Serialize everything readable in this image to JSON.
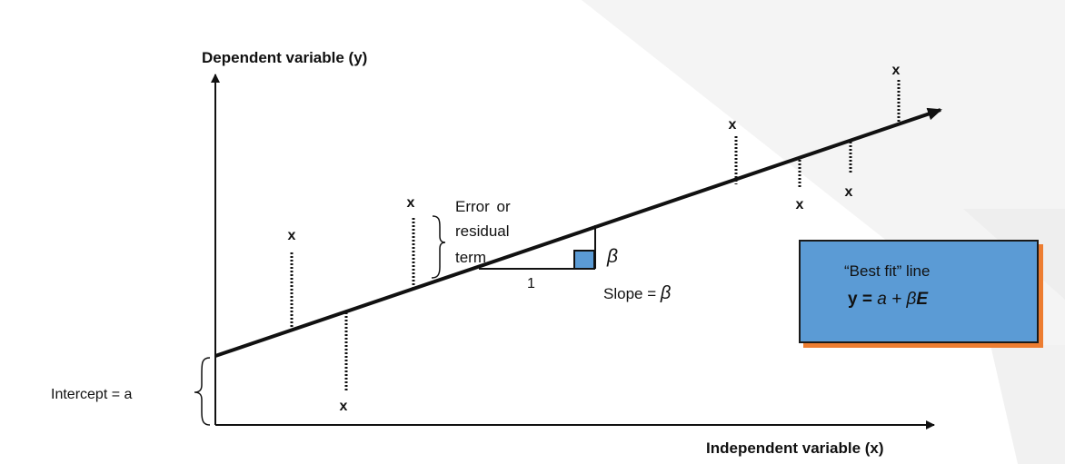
{
  "axes": {
    "y_label": "Dependent variable (y)",
    "x_label": "Independent variable (x)"
  },
  "marks": {
    "symbol": "x"
  },
  "annotations": {
    "intercept": "Intercept = a",
    "error_line1": "Error or",
    "error_line2": "residual",
    "error_line3": "term",
    "run": "1",
    "rise": "β",
    "slope_text": "Slope = ",
    "slope_symbol": "β"
  },
  "best_fit": {
    "title": "“Best fit” line",
    "eq_y": "y",
    "eq_equals": " = ",
    "eq_a": "a",
    "eq_plus": " + ",
    "eq_beta": "β",
    "eq_E": "E"
  },
  "colors": {
    "box_fill": "#5b9bd5",
    "box_shadow": "#ed7d31",
    "small_square": "#5b9bd5",
    "ink": "#111111"
  }
}
